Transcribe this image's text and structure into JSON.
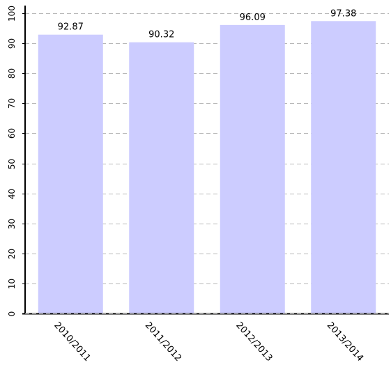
{
  "chart_data": {
    "type": "bar",
    "title": "",
    "xlabel": "",
    "ylabel": "",
    "categories": [
      "2010/2011",
      "2011/2012",
      "2012/2013",
      "2013/2014"
    ],
    "values": [
      92.87,
      90.32,
      96.09,
      97.38
    ],
    "data_labels": [
      "92.87",
      "90.32",
      "96.09",
      "97.38"
    ],
    "ylim": [
      0,
      100
    ],
    "yticks": [
      0,
      10,
      20,
      30,
      40,
      50,
      60,
      70,
      80,
      90,
      100
    ],
    "ytick_labels": [
      "0",
      "10",
      "20",
      "30",
      "40",
      "50",
      "60",
      "70",
      "80",
      "90",
      "100"
    ],
    "grid": true,
    "legend": "none",
    "colors": {
      "bar": "#ccccff",
      "grid": "#b8b8b8",
      "axis": "#000000"
    }
  }
}
